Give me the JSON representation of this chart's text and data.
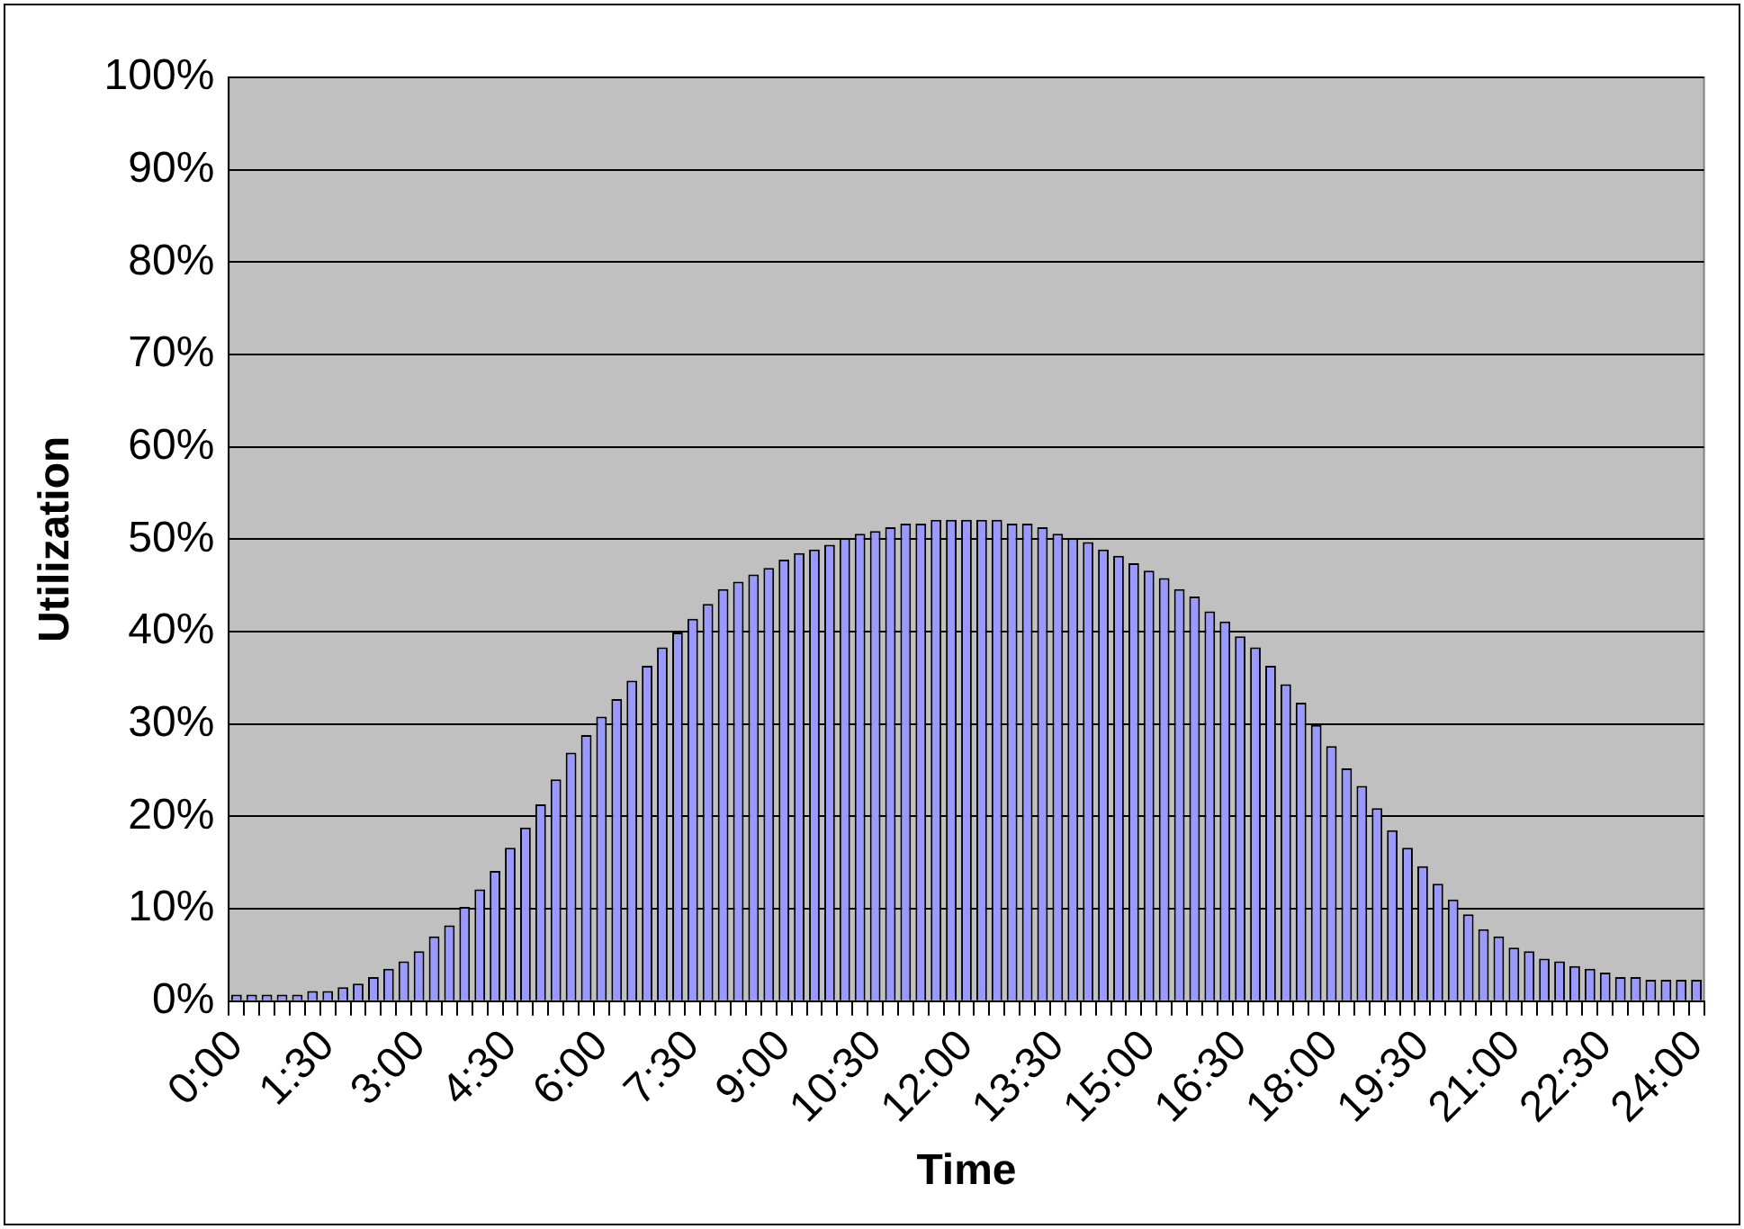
{
  "chart_data": {
    "type": "bar",
    "xlabel": "Time",
    "ylabel": "Utilization",
    "categories": [
      "0:00",
      null,
      null,
      null,
      null,
      null,
      "1:30",
      null,
      null,
      null,
      null,
      null,
      "3:00",
      null,
      null,
      null,
      null,
      null,
      "4:30",
      null,
      null,
      null,
      null,
      null,
      "6:00",
      null,
      null,
      null,
      null,
      null,
      "7:30",
      null,
      null,
      null,
      null,
      null,
      "9:00",
      null,
      null,
      null,
      null,
      null,
      "10:30",
      null,
      null,
      null,
      null,
      null,
      "12:00",
      null,
      null,
      null,
      null,
      null,
      "13:30",
      null,
      null,
      null,
      null,
      null,
      "15:00",
      null,
      null,
      null,
      null,
      null,
      "16:30",
      null,
      null,
      null,
      null,
      null,
      "18:00",
      null,
      null,
      null,
      null,
      null,
      "19:30",
      null,
      null,
      null,
      null,
      null,
      "21:00",
      null,
      null,
      null,
      null,
      null,
      "22:30",
      null,
      null,
      null,
      null,
      null,
      "24:00"
    ],
    "values": [
      0.7,
      0.7,
      0.7,
      0.7,
      0.7,
      1.1,
      1.1,
      1.5,
      1.9,
      2.6,
      3.5,
      4.3,
      5.4,
      7.0,
      8.2,
      10.2,
      12.1,
      14.1,
      16.6,
      18.8,
      21.3,
      24.0,
      26.9,
      28.8,
      30.8,
      32.7,
      34.7,
      36.3,
      38.3,
      39.9,
      41.4,
      43.0,
      44.6,
      45.4,
      46.2,
      46.9,
      47.8,
      48.5,
      48.9,
      49.4,
      50.1,
      50.6,
      50.9,
      51.3,
      51.7,
      51.7,
      52.1,
      52.1,
      52.1,
      52.1,
      52.1,
      51.7,
      51.7,
      51.3,
      50.6,
      50.1,
      49.7,
      48.9,
      48.2,
      47.4,
      46.6,
      45.8,
      44.6,
      43.8,
      42.2,
      41.1,
      39.5,
      38.3,
      36.3,
      34.3,
      32.3,
      29.9,
      27.6,
      25.2,
      23.3,
      20.9,
      18.5,
      16.6,
      14.6,
      12.7,
      11.0,
      9.4,
      7.8,
      7.0,
      5.8,
      5.4,
      4.6,
      4.3,
      3.8,
      3.5,
      3.1,
      2.6,
      2.6,
      2.3,
      2.3,
      2.3,
      2.3
    ],
    "color": "#9999ff",
    "ylim": [
      0,
      100
    ],
    "yticks": [
      {
        "value": 0,
        "label": "0%"
      },
      {
        "value": 10,
        "label": "10%"
      },
      {
        "value": 20,
        "label": "20%"
      },
      {
        "value": 30,
        "label": "30%"
      },
      {
        "value": 40,
        "label": "40%"
      },
      {
        "value": 50,
        "label": "50%"
      },
      {
        "value": 60,
        "label": "60%"
      },
      {
        "value": 70,
        "label": "70%"
      },
      {
        "value": 80,
        "label": "80%"
      },
      {
        "value": 90,
        "label": "90%"
      },
      {
        "value": 100,
        "label": "100%"
      }
    ],
    "grid": "y",
    "legend": false
  }
}
